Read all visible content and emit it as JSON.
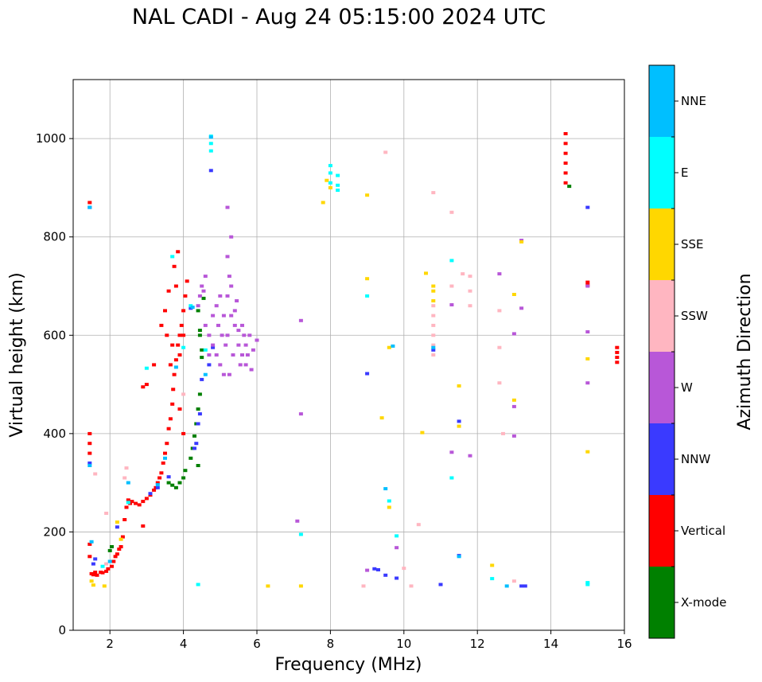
{
  "chart_data": {
    "type": "scatter",
    "title": "NAL CADI - Aug 24 05:15:00 2024 UTC",
    "xlabel": "Frequency (MHz)",
    "ylabel": "Virtual height (km)",
    "xlim": [
      1,
      16
    ],
    "ylim": [
      0,
      1120
    ],
    "xticks": [
      2,
      4,
      6,
      8,
      10,
      12,
      14,
      16
    ],
    "yticks": [
      0,
      200,
      400,
      600,
      800,
      1000
    ],
    "grid": true,
    "colorbar": {
      "label": "Azimuth Direction",
      "categories": [
        {
          "name": "X-mode",
          "color": "#008000"
        },
        {
          "name": "Vertical",
          "color": "#ff0000"
        },
        {
          "name": "NNW",
          "color": "#3a3aff"
        },
        {
          "name": "W",
          "color": "#b857d8"
        },
        {
          "name": "SSW",
          "color": "#ffb6c1"
        },
        {
          "name": "SSE",
          "color": "#ffd700"
        },
        {
          "name": "E",
          "color": "#00ffff"
        },
        {
          "name": "NNE",
          "color": "#00bfff"
        }
      ]
    },
    "series": [
      {
        "name": "Vertical",
        "points": [
          [
            1.5,
            115
          ],
          [
            1.55,
            113
          ],
          [
            1.6,
            118
          ],
          [
            1.65,
            112
          ],
          [
            1.75,
            118
          ],
          [
            1.8,
            117
          ],
          [
            1.9,
            120
          ],
          [
            1.95,
            125
          ],
          [
            2.05,
            130
          ],
          [
            2.1,
            140
          ],
          [
            2.15,
            150
          ],
          [
            2.2,
            155
          ],
          [
            2.25,
            165
          ],
          [
            2.3,
            170
          ],
          [
            2.35,
            190
          ],
          [
            2.4,
            225
          ],
          [
            2.45,
            250
          ],
          [
            2.5,
            265
          ],
          [
            2.55,
            258
          ],
          [
            2.6,
            262
          ],
          [
            2.7,
            258
          ],
          [
            2.8,
            255
          ],
          [
            2.9,
            262
          ],
          [
            3.0,
            268
          ],
          [
            3.1,
            275
          ],
          [
            3.2,
            285
          ],
          [
            3.25,
            290
          ],
          [
            3.3,
            300
          ],
          [
            3.35,
            310
          ],
          [
            3.4,
            320
          ],
          [
            3.45,
            340
          ],
          [
            3.5,
            360
          ],
          [
            3.55,
            380
          ],
          [
            3.6,
            410
          ],
          [
            3.65,
            430
          ],
          [
            3.7,
            460
          ],
          [
            3.72,
            490
          ],
          [
            3.75,
            520
          ],
          [
            3.8,
            550
          ],
          [
            3.85,
            580
          ],
          [
            3.9,
            600
          ],
          [
            3.95,
            620
          ],
          [
            4.0,
            650
          ],
          [
            4.05,
            680
          ],
          [
            4.1,
            710
          ],
          [
            3.8,
            700
          ],
          [
            3.75,
            740
          ],
          [
            3.85,
            770
          ],
          [
            3.2,
            540
          ],
          [
            3.0,
            500
          ],
          [
            2.9,
            495
          ],
          [
            3.4,
            620
          ],
          [
            3.5,
            650
          ],
          [
            3.6,
            690
          ],
          [
            3.9,
            560
          ],
          [
            4.0,
            600
          ],
          [
            1.45,
            870
          ],
          [
            1.45,
            380
          ],
          [
            1.45,
            360
          ],
          [
            1.45,
            400
          ],
          [
            1.45,
            175
          ],
          [
            1.45,
            150
          ],
          [
            2.9,
            212
          ],
          [
            14.4,
            910
          ],
          [
            14.4,
            930
          ],
          [
            14.4,
            950
          ],
          [
            14.4,
            970
          ],
          [
            14.4,
            990
          ],
          [
            14.4,
            1010
          ],
          [
            15.0,
            708
          ],
          [
            15.0,
            702
          ],
          [
            15.8,
            545
          ],
          [
            15.8,
            555
          ],
          [
            15.8,
            565
          ],
          [
            15.8,
            575
          ],
          [
            3.7,
            580
          ],
          [
            3.65,
            540
          ],
          [
            3.55,
            600
          ],
          [
            3.9,
            450
          ],
          [
            4.0,
            400
          ]
        ]
      },
      {
        "name": "X-mode",
        "points": [
          [
            3.6,
            300
          ],
          [
            3.7,
            295
          ],
          [
            3.8,
            290
          ],
          [
            3.9,
            300
          ],
          [
            4.0,
            310
          ],
          [
            4.05,
            325
          ],
          [
            4.2,
            350
          ],
          [
            4.25,
            370
          ],
          [
            4.3,
            395
          ],
          [
            4.35,
            420
          ],
          [
            4.4,
            450
          ],
          [
            4.45,
            480
          ],
          [
            4.5,
            555
          ],
          [
            4.5,
            570
          ],
          [
            4.45,
            600
          ],
          [
            4.4,
            650
          ],
          [
            4.55,
            675
          ],
          [
            4.45,
            610
          ],
          [
            14.5,
            903
          ],
          [
            2.0,
            162
          ],
          [
            2.05,
            170
          ],
          [
            4.4,
            335
          ]
        ]
      },
      {
        "name": "NNW",
        "points": [
          [
            1.45,
            860
          ],
          [
            1.45,
            340
          ],
          [
            1.55,
            135
          ],
          [
            1.6,
            145
          ],
          [
            2.2,
            210
          ],
          [
            3.1,
            278
          ],
          [
            3.3,
            290
          ],
          [
            3.6,
            312
          ],
          [
            4.3,
            370
          ],
          [
            4.35,
            380
          ],
          [
            4.4,
            420
          ],
          [
            4.45,
            440
          ],
          [
            4.5,
            510
          ],
          [
            4.7,
            540
          ],
          [
            4.8,
            575
          ],
          [
            4.75,
            935
          ],
          [
            9.0,
            522
          ],
          [
            9.2,
            125
          ],
          [
            9.3,
            123
          ],
          [
            9.5,
            112
          ],
          [
            9.8,
            106
          ],
          [
            10.8,
            570
          ],
          [
            11.0,
            93
          ],
          [
            11.5,
            425
          ],
          [
            11.5,
            152
          ],
          [
            13.2,
            90
          ],
          [
            13.3,
            90
          ],
          [
            15.0,
            860
          ],
          [
            4.2,
            655
          ]
        ]
      },
      {
        "name": "W",
        "points": [
          [
            4.6,
            620
          ],
          [
            4.7,
            600
          ],
          [
            4.8,
            580
          ],
          [
            4.9,
            560
          ],
          [
            5.0,
            540
          ],
          [
            5.1,
            520
          ],
          [
            5.2,
            600
          ],
          [
            5.3,
            640
          ],
          [
            5.4,
            620
          ],
          [
            5.5,
            580
          ],
          [
            5.6,
            560
          ],
          [
            5.7,
            540
          ],
          [
            5.8,
            600
          ],
          [
            5.9,
            570
          ],
          [
            6.0,
            590
          ],
          [
            5.2,
            680
          ],
          [
            5.3,
            700
          ],
          [
            5.25,
            720
          ],
          [
            5.2,
            760
          ],
          [
            5.3,
            800
          ],
          [
            5.4,
            650
          ],
          [
            5.5,
            610
          ],
          [
            5.1,
            640
          ],
          [
            5.0,
            680
          ],
          [
            4.9,
            660
          ],
          [
            5.6,
            620
          ],
          [
            5.7,
            580
          ],
          [
            4.8,
            640
          ],
          [
            4.7,
            560
          ],
          [
            5.45,
            670
          ],
          [
            5.55,
            540
          ],
          [
            5.15,
            580
          ],
          [
            5.35,
            560
          ],
          [
            5.65,
            600
          ],
          [
            5.05,
            600
          ],
          [
            4.95,
            620
          ],
          [
            5.75,
            560
          ],
          [
            5.85,
            530
          ],
          [
            5.25,
            520
          ],
          [
            4.55,
            690
          ],
          [
            4.6,
            720
          ],
          [
            4.5,
            700
          ],
          [
            4.45,
            680
          ],
          [
            4.4,
            660
          ],
          [
            5.2,
            860
          ],
          [
            7.2,
            630
          ],
          [
            7.2,
            440
          ],
          [
            9.0,
            122
          ],
          [
            9.8,
            168
          ],
          [
            11.3,
            662
          ],
          [
            12.6,
            725
          ],
          [
            13.0,
            603
          ],
          [
            13.0,
            455
          ],
          [
            13.0,
            395
          ],
          [
            13.2,
            655
          ],
          [
            13.2,
            793
          ],
          [
            15.0,
            700
          ],
          [
            15.0,
            607
          ],
          [
            15.0,
            503
          ],
          [
            11.8,
            355
          ],
          [
            11.3,
            362
          ],
          [
            7.1,
            222
          ]
        ]
      },
      {
        "name": "SSW",
        "points": [
          [
            2.4,
            310
          ],
          [
            2.45,
            330
          ],
          [
            1.9,
            135
          ],
          [
            1.9,
            238
          ],
          [
            1.6,
            318
          ],
          [
            10.8,
            560
          ],
          [
            10.8,
            580
          ],
          [
            10.8,
            600
          ],
          [
            10.8,
            620
          ],
          [
            10.8,
            640
          ],
          [
            10.8,
            660
          ],
          [
            10.8,
            890
          ],
          [
            11.3,
            700
          ],
          [
            11.3,
            850
          ],
          [
            11.6,
            725
          ],
          [
            11.8,
            690
          ],
          [
            11.8,
            720
          ],
          [
            11.8,
            660
          ],
          [
            12.6,
            650
          ],
          [
            12.6,
            575
          ],
          [
            12.6,
            503
          ],
          [
            12.7,
            400
          ],
          [
            13.0,
            100
          ],
          [
            8.9,
            90
          ],
          [
            10.2,
            90
          ],
          [
            10.0,
            126
          ],
          [
            10.4,
            215
          ],
          [
            9.5,
            972
          ],
          [
            4.0,
            480
          ]
        ]
      },
      {
        "name": "SSE",
        "points": [
          [
            1.55,
            92
          ],
          [
            1.5,
            100
          ],
          [
            1.85,
            90
          ],
          [
            2.2,
            220
          ],
          [
            2.3,
            185
          ],
          [
            6.3,
            90
          ],
          [
            7.2,
            90
          ],
          [
            7.8,
            870
          ],
          [
            7.9,
            915
          ],
          [
            8.0,
            900
          ],
          [
            9.0,
            885
          ],
          [
            9.0,
            715
          ],
          [
            9.4,
            432
          ],
          [
            9.6,
            575
          ],
          [
            10.5,
            402
          ],
          [
            10.8,
            690
          ],
          [
            10.8,
            700
          ],
          [
            10.8,
            670
          ],
          [
            11.5,
            497
          ],
          [
            11.5,
            415
          ],
          [
            12.4,
            132
          ],
          [
            13.0,
            468
          ],
          [
            13.0,
            683
          ],
          [
            13.2,
            790
          ],
          [
            15.0,
            552
          ],
          [
            15.0,
            363
          ],
          [
            10.6,
            726
          ],
          [
            9.6,
            250
          ]
        ]
      },
      {
        "name": "E",
        "points": [
          [
            4.75,
            1005
          ],
          [
            4.75,
            990
          ],
          [
            4.75,
            975
          ],
          [
            4.4,
            93
          ],
          [
            2.5,
            260
          ],
          [
            1.8,
            130
          ],
          [
            3.7,
            760
          ],
          [
            4.2,
            660
          ],
          [
            4.6,
            570
          ],
          [
            7.2,
            195
          ],
          [
            8.0,
            945
          ],
          [
            8.0,
            930
          ],
          [
            8.0,
            910
          ],
          [
            8.2,
            925
          ],
          [
            8.2,
            905
          ],
          [
            8.2,
            895
          ],
          [
            9.0,
            680
          ],
          [
            9.6,
            263
          ],
          [
            9.8,
            192
          ],
          [
            11.3,
            752
          ],
          [
            11.3,
            310
          ],
          [
            12.4,
            105
          ],
          [
            15.0,
            93
          ],
          [
            15.0,
            97
          ],
          [
            4.0,
            575
          ],
          [
            3.0,
            533
          ]
        ]
      },
      {
        "name": "NNE",
        "points": [
          [
            1.5,
            180
          ],
          [
            1.45,
            860
          ],
          [
            1.45,
            335
          ],
          [
            2.0,
            140
          ],
          [
            2.5,
            300
          ],
          [
            3.3,
            296
          ],
          [
            3.5,
            350
          ],
          [
            3.8,
            535
          ],
          [
            4.25,
            657
          ],
          [
            4.6,
            520
          ],
          [
            9.5,
            288
          ],
          [
            9.7,
            578
          ],
          [
            10.8,
            575
          ],
          [
            11.5,
            150
          ],
          [
            12.8,
            90
          ],
          [
            4.75,
            1003
          ]
        ]
      }
    ]
  }
}
